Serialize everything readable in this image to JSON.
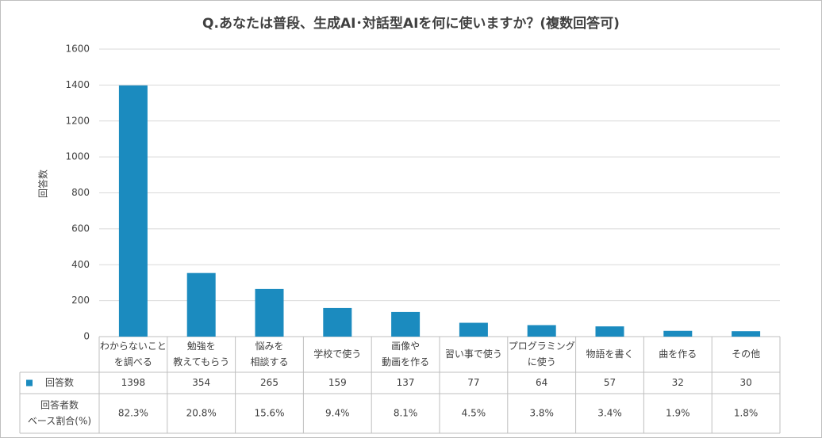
{
  "chart_data": {
    "type": "bar",
    "title": "Q.あなたは普段、生成AI･対話型AIを何に使いますか？(複数回答可)",
    "y_label": "回答数",
    "categories": [
      [
        "わからないこと",
        "を調べる"
      ],
      [
        "勉強を",
        "教えてもらう"
      ],
      [
        "悩みを",
        "相談する"
      ],
      [
        "学校で使う"
      ],
      [
        "画像や",
        "動画を作る"
      ],
      [
        "習い事で使う"
      ],
      [
        "プログラミング",
        "に使う"
      ],
      [
        "物語を書く"
      ],
      [
        "曲を作る"
      ],
      [
        "その他"
      ]
    ],
    "series": [
      {
        "name": "回答数",
        "color": "#1b8bbf",
        "values": [
          1398,
          354,
          265,
          159,
          137,
          77,
          64,
          57,
          32,
          30
        ]
      }
    ],
    "table_rows": [
      {
        "name": [
          "回答者数",
          "ベース割合(%)"
        ],
        "values": [
          82.3,
          20.8,
          15.6,
          9.4,
          8.1,
          4.5,
          3.8,
          3.4,
          1.9,
          1.8
        ],
        "value_labels": [
          "82.3%",
          "20.8%",
          "15.6%",
          "9.4%",
          "8.1%",
          "4.5%",
          "3.8%",
          "3.4%",
          "1.9%",
          "1.8%"
        ]
      }
    ],
    "ylim": [
      0,
      1600
    ],
    "yticks": [
      0,
      200,
      400,
      600,
      800,
      1000,
      1200,
      1400,
      1600
    ],
    "grid": true
  }
}
